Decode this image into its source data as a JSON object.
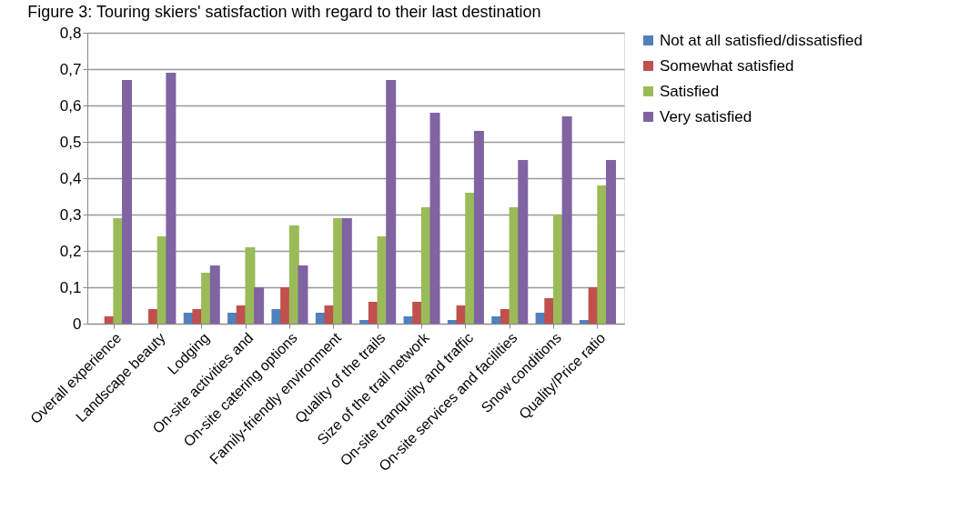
{
  "chart_data": {
    "type": "bar",
    "title": "Figure 3: Touring skiers' satisfaction with regard to their last destination",
    "categories": [
      "Overall experience",
      "Landscape beauty",
      "Lodging",
      "On-site activities and",
      "On-site catering options",
      "Family-friendly environment",
      "Quality of the trails",
      "Size of the trail network",
      "On-site tranquility and traffic",
      "On-site services and facilities",
      "Snow conditions",
      "Quality/Price ratio"
    ],
    "series": [
      {
        "name": "Not at all satisfied/dissatisfied",
        "color": "#4f81bd",
        "values": [
          0,
          0,
          0.03,
          0.03,
          0.04,
          0.03,
          0.01,
          0.02,
          0.01,
          0.02,
          0.03,
          0.01
        ]
      },
      {
        "name": "Somewhat satisfied",
        "color": "#c0504d",
        "values": [
          0.02,
          0.04,
          0.04,
          0.05,
          0.1,
          0.05,
          0.06,
          0.06,
          0.05,
          0.04,
          0.07,
          0.1
        ]
      },
      {
        "name": "Satisfied",
        "color": "#9bbb59",
        "values": [
          0.29,
          0.24,
          0.14,
          0.21,
          0.27,
          0.29,
          0.24,
          0.32,
          0.36,
          0.32,
          0.3,
          0.38
        ]
      },
      {
        "name": "Very satisfied",
        "color": "#8064a2",
        "values": [
          0.67,
          0.69,
          0.16,
          0.1,
          0.16,
          0.29,
          0.67,
          0.58,
          0.53,
          0.45,
          0.57,
          0.45
        ]
      }
    ],
    "ylim": [
      0,
      0.8
    ],
    "yticks": [
      0,
      {
        "value": 0.1,
        "label": "0,1"
      },
      {
        "value": 0.2,
        "label": "0,2"
      },
      {
        "value": 0.3,
        "label": "0,3"
      },
      {
        "value": 0.4,
        "label": "0,4"
      },
      {
        "value": 0.5,
        "label": "0,5"
      },
      {
        "value": 0.6,
        "label": "0,6"
      },
      {
        "value": 0.7,
        "label": "0,7"
      },
      {
        "value": 0.8,
        "label": "0,8"
      }
    ],
    "grid": "y",
    "legend": "right"
  }
}
